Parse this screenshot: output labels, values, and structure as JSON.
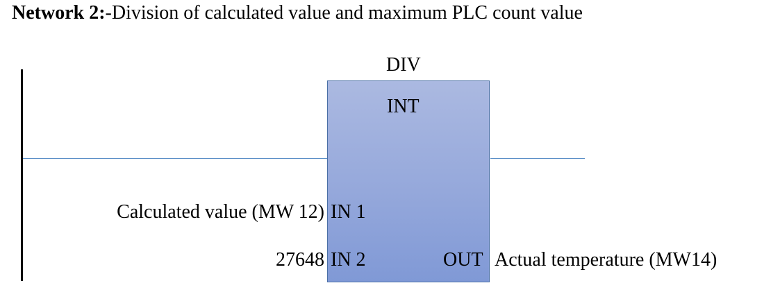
{
  "heading": {
    "bold_part": "Network 2:",
    "rest": "-Division of calculated value and maximum PLC count value"
  },
  "block": {
    "name": "DIV",
    "type": "INT",
    "inputs": [
      {
        "pin": "IN 1",
        "operand": "Calculated value (MW 12)"
      },
      {
        "pin": "IN 2",
        "operand": "27648"
      }
    ],
    "output": {
      "pin": "OUT",
      "operand": "Actual temperature (MW14)"
    }
  },
  "colors": {
    "wire": "#5b8fc7",
    "block_top": "#abb9e1",
    "block_bottom": "#8099d6",
    "block_border": "#4a6fa5"
  }
}
